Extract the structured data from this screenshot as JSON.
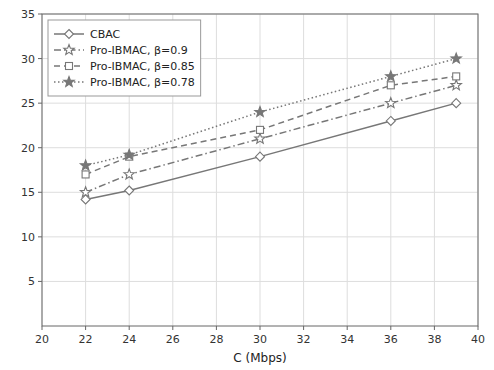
{
  "chart_data": {
    "type": "line",
    "x": [
      22,
      24,
      30,
      36,
      39
    ],
    "xlabel": "C (Mbps)",
    "xlim": [
      20,
      40
    ],
    "ylim": [
      0,
      35
    ],
    "xticks": [
      20,
      22,
      24,
      26,
      28,
      30,
      32,
      34,
      36,
      38,
      40
    ],
    "yticks": [
      5,
      10,
      15,
      20,
      25,
      30,
      35
    ],
    "grid": true,
    "legend": "upper left",
    "series": [
      {
        "name": "CBAC",
        "color": "#777777",
        "marker": "diamond-open",
        "line_style": "solid",
        "values": [
          14.2,
          15.2,
          19.0,
          23.0,
          25.0
        ]
      },
      {
        "name": "Pro-IBMAC, β=0.9",
        "color": "#777777",
        "marker": "star-open",
        "line_style": "dashdot",
        "values": [
          15.0,
          17.0,
          21.0,
          25.0,
          27.0
        ]
      },
      {
        "name": "Pro-IBMAC, β=0.85",
        "color": "#777777",
        "marker": "square-open",
        "line_style": "dashed",
        "values": [
          17.0,
          19.0,
          22.0,
          27.0,
          28.0
        ]
      },
      {
        "name": "Pro-IBMAC, β=0.78",
        "color": "#777777",
        "marker": "star",
        "line_style": "dotted",
        "values": [
          18.0,
          19.2,
          24.0,
          28.0,
          30.0
        ]
      }
    ]
  }
}
